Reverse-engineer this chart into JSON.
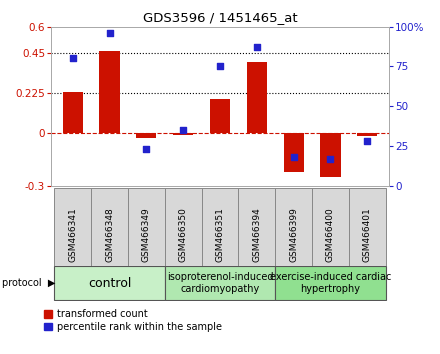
{
  "title": "GDS3596 / 1451465_at",
  "samples": [
    "GSM466341",
    "GSM466348",
    "GSM466349",
    "GSM466350",
    "GSM466351",
    "GSM466394",
    "GSM466399",
    "GSM466400",
    "GSM466401"
  ],
  "transformed_count": [
    0.23,
    0.46,
    -0.03,
    -0.01,
    0.19,
    0.4,
    -0.22,
    -0.25,
    -0.02
  ],
  "percentile_rank": [
    80,
    96,
    23,
    35,
    75,
    87,
    18,
    17,
    28
  ],
  "groups": [
    {
      "label": "control",
      "start": 0,
      "end": 3,
      "color": "#c8f0c8",
      "fontsize": 9
    },
    {
      "label": "isoproterenol-induced\ncardiomyopathy",
      "start": 3,
      "end": 6,
      "color": "#b0e8b0",
      "fontsize": 7
    },
    {
      "label": "exercise-induced cardiac\nhypertrophy",
      "start": 6,
      "end": 9,
      "color": "#90e090",
      "fontsize": 7
    }
  ],
  "bar_color": "#cc1100",
  "dot_color": "#2222cc",
  "ylim_left": [
    -0.3,
    0.6
  ],
  "ylim_right": [
    0,
    100
  ],
  "yticks_left": [
    -0.3,
    0.0,
    0.225,
    0.45,
    0.6
  ],
  "yticks_right": [
    0,
    25,
    50,
    75,
    100
  ],
  "hlines": [
    0.225,
    0.45
  ],
  "zero_line": 0.0,
  "bar_width": 0.55,
  "sample_box_color": "#d8d8d8",
  "sample_box_edge": "#888888"
}
